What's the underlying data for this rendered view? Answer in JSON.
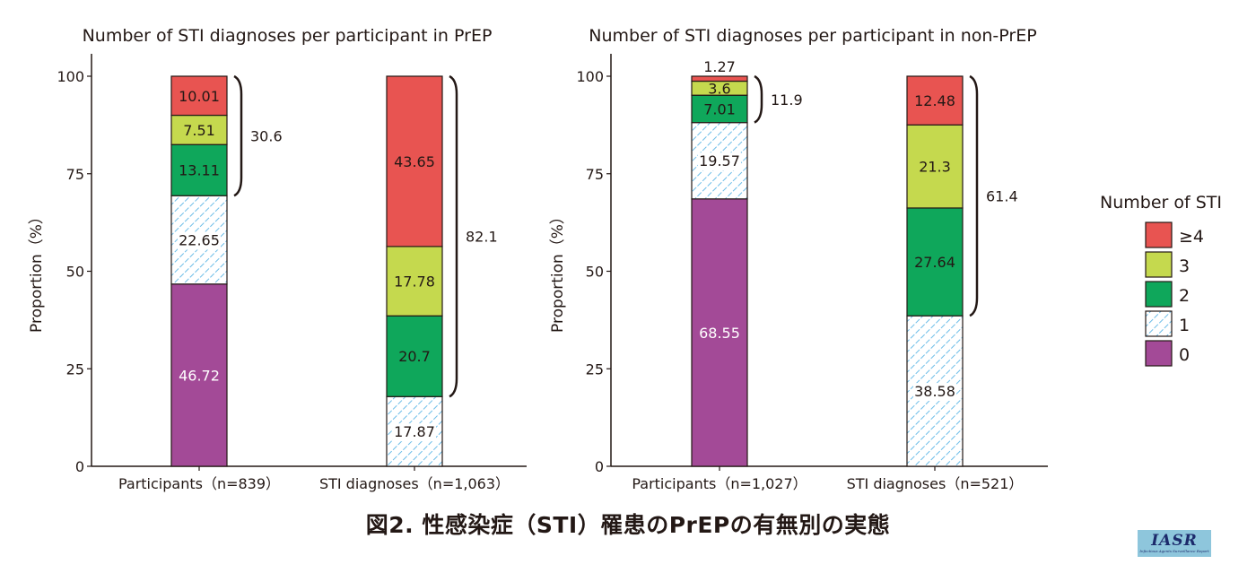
{
  "chart_data": [
    {
      "type": "bar",
      "stacked": true,
      "title": "Number of STI diagnoses per participant in PrEP",
      "ylabel": "Proportion（%）",
      "xlabel": "",
      "ylim": [
        0,
        100
      ],
      "yticks": [
        "0",
        "25",
        "50",
        "75",
        "100"
      ],
      "categories": [
        "Participants（n=839）",
        "STI diagnoses（n=1,063）"
      ],
      "series": [
        {
          "name": "0",
          "values": [
            46.72,
            0
          ],
          "labels": [
            "46.72",
            ""
          ]
        },
        {
          "name": "1",
          "values": [
            22.65,
            17.87
          ],
          "labels": [
            "22.65",
            "17.87"
          ]
        },
        {
          "name": "2",
          "values": [
            13.11,
            20.7
          ],
          "labels": [
            "13.11",
            "20.7"
          ]
        },
        {
          "name": "3",
          "values": [
            7.51,
            17.78
          ],
          "labels": [
            "7.51",
            "17.78"
          ]
        },
        {
          "name": "≥4",
          "values": [
            10.01,
            43.65
          ],
          "labels": [
            "10.01",
            "43.65"
          ]
        }
      ],
      "brackets": [
        {
          "category": 0,
          "from": 69.37,
          "to": 100,
          "label": "30.6"
        },
        {
          "category": 1,
          "from": 17.87,
          "to": 100,
          "label": "82.1"
        }
      ]
    },
    {
      "type": "bar",
      "stacked": true,
      "title": "Number of STI diagnoses per participant in non-PrEP",
      "ylabel": "Proportion（%）",
      "xlabel": "",
      "ylim": [
        0,
        100
      ],
      "yticks": [
        "0",
        "25",
        "50",
        "75",
        "100"
      ],
      "categories": [
        "Participants（n=1,027）",
        "STI diagnoses（n=521）"
      ],
      "series": [
        {
          "name": "0",
          "values": [
            68.55,
            0
          ],
          "labels": [
            "68.55",
            ""
          ]
        },
        {
          "name": "1",
          "values": [
            19.57,
            38.58
          ],
          "labels": [
            "19.57",
            "38.58"
          ]
        },
        {
          "name": "2",
          "values": [
            7.01,
            27.64
          ],
          "labels": [
            "7.01",
            "27.64"
          ]
        },
        {
          "name": "3",
          "values": [
            3.6,
            21.3
          ],
          "labels": [
            "3.6",
            "21.3"
          ]
        },
        {
          "name": "≥4",
          "values": [
            1.27,
            12.48
          ],
          "labels": [
            "1.27",
            "12.48"
          ]
        }
      ],
      "brackets": [
        {
          "category": 0,
          "from": 88.12,
          "to": 100,
          "label": "11.9"
        },
        {
          "category": 1,
          "from": 38.58,
          "to": 100,
          "label": "61.4"
        }
      ]
    }
  ],
  "legend": {
    "title": "Number of STI",
    "placement": "right",
    "items": [
      {
        "label": "≥4",
        "color": "#e85451",
        "pattern": "solid"
      },
      {
        "label": "3",
        "color": "#c5d94e",
        "pattern": "solid"
      },
      {
        "label": "2",
        "color": "#0fa75b",
        "pattern": "solid"
      },
      {
        "label": "1",
        "color": "#6cbde8",
        "pattern": "hatch"
      },
      {
        "label": "0",
        "color": "#a34a97",
        "pattern": "solid"
      }
    ]
  },
  "colors": {
    "0": "#a34a97",
    "1": "#6cbde8",
    "2": "#0fa75b",
    "3": "#c5d94e",
    "ge4": "#e85451",
    "ink": "#231815"
  },
  "caption": "図2. 性感染症（STI）罹患のPrEPの有無別の実態",
  "logo": {
    "text": "IASR",
    "subtitle": "Infectious Agents Surveillance Report"
  }
}
